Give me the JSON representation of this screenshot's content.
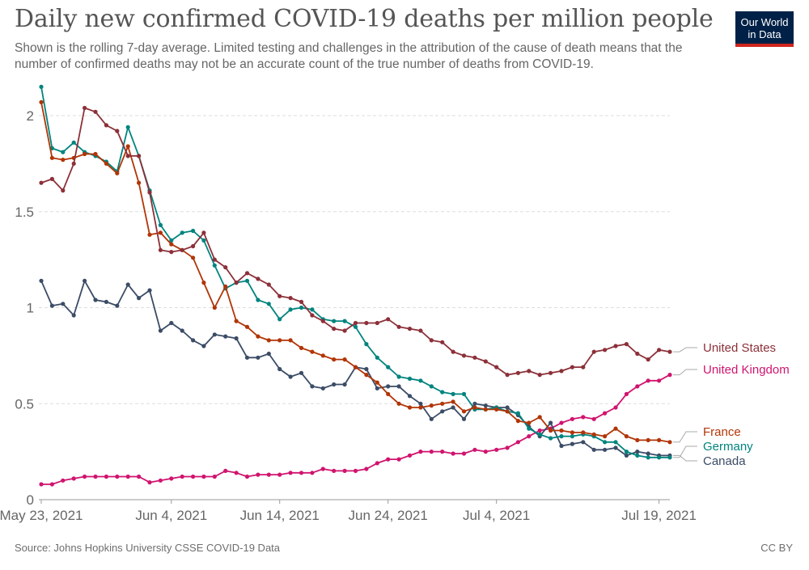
{
  "header": {
    "title": "Daily new confirmed COVID-19 deaths per million people",
    "subtitle": "Shown is the rolling 7-day average. Limited testing and challenges in the attribution of the cause of death means that the number of confirmed deaths may not be an accurate count of the true number of deaths from COVID-19."
  },
  "logo": {
    "line1": "Our World",
    "line2": "in Data"
  },
  "footer": {
    "source": "Source: Johns Hopkins University CSSE COVID-19 Data",
    "license": "CC BY"
  },
  "colors": {
    "United States": "#8c3039",
    "United Kingdom": "#d0146f",
    "France": "#b13507",
    "Germany": "#00847e",
    "Canada": "#3b4c66"
  },
  "chart_data": {
    "type": "line",
    "title": "Daily new confirmed COVID-19 deaths per million people",
    "xlabel": "",
    "ylabel": "",
    "x_start": "2021-05-23",
    "x_end": "2021-07-19",
    "x_step": "1 day",
    "ylim": [
      0,
      2.2
    ],
    "yticks": [
      0,
      0.5,
      1,
      1.5,
      2
    ],
    "ytick_labels": [
      "0",
      "0.5",
      "1",
      "1.5",
      "2"
    ],
    "xtick_labels": [
      {
        "day": 0,
        "label": "May 23, 2021"
      },
      {
        "day": 12,
        "label": "Jun 4, 2021"
      },
      {
        "day": 22,
        "label": "Jun 14, 2021"
      },
      {
        "day": 32,
        "label": "Jun 24, 2021"
      },
      {
        "day": 42,
        "label": "Jul 4, 2021"
      },
      {
        "day": 57,
        "label": "Jul 19, 2021"
      }
    ],
    "grid": true,
    "series": [
      {
        "name": "United States",
        "label": "United States",
        "values": [
          1.65,
          1.67,
          1.61,
          1.75,
          2.04,
          2.02,
          1.95,
          1.92,
          1.79,
          1.79,
          1.6,
          1.3,
          1.29,
          1.3,
          1.32,
          1.39,
          1.25,
          1.21,
          1.13,
          1.18,
          1.15,
          1.12,
          1.06,
          1.05,
          1.03,
          0.96,
          0.93,
          0.89,
          0.88,
          0.92,
          0.92,
          0.92,
          0.94,
          0.9,
          0.89,
          0.88,
          0.83,
          0.82,
          0.77,
          0.75,
          0.74,
          0.72,
          0.69,
          0.65,
          0.66,
          0.67,
          0.65,
          0.66,
          0.67,
          0.69,
          0.69,
          0.77,
          0.78,
          0.8,
          0.81,
          0.76,
          0.73,
          0.78,
          0.77
        ]
      },
      {
        "name": "United Kingdom",
        "label": "United Kingdom",
        "values": [
          0.08,
          0.08,
          0.1,
          0.11,
          0.12,
          0.12,
          0.12,
          0.12,
          0.12,
          0.12,
          0.09,
          0.1,
          0.11,
          0.12,
          0.12,
          0.12,
          0.12,
          0.15,
          0.14,
          0.12,
          0.13,
          0.13,
          0.13,
          0.14,
          0.14,
          0.14,
          0.16,
          0.15,
          0.15,
          0.15,
          0.16,
          0.19,
          0.21,
          0.21,
          0.23,
          0.25,
          0.25,
          0.25,
          0.24,
          0.24,
          0.26,
          0.25,
          0.26,
          0.27,
          0.3,
          0.33,
          0.36,
          0.37,
          0.4,
          0.42,
          0.43,
          0.42,
          0.45,
          0.48,
          0.55,
          0.59,
          0.62,
          0.62,
          0.65
        ]
      },
      {
        "name": "France",
        "label": "France",
        "values": [
          2.07,
          1.78,
          1.77,
          1.78,
          1.8,
          1.8,
          1.75,
          1.7,
          1.84,
          1.65,
          1.38,
          1.39,
          1.33,
          1.3,
          1.26,
          1.13,
          1.0,
          1.11,
          0.93,
          0.9,
          0.85,
          0.83,
          0.83,
          0.83,
          0.79,
          0.77,
          0.75,
          0.73,
          0.73,
          0.69,
          0.65,
          0.61,
          0.55,
          0.5,
          0.48,
          0.48,
          0.49,
          0.5,
          0.51,
          0.46,
          0.48,
          0.47,
          0.47,
          0.46,
          0.41,
          0.4,
          0.43,
          0.36,
          0.36,
          0.35,
          0.35,
          0.34,
          0.33,
          0.37,
          0.33,
          0.31,
          0.31,
          0.31,
          0.3
        ]
      },
      {
        "name": "Germany",
        "label": "Germany",
        "values": [
          2.15,
          1.83,
          1.81,
          1.86,
          1.81,
          1.79,
          1.76,
          1.71,
          1.94,
          1.79,
          1.61,
          1.43,
          1.35,
          1.39,
          1.4,
          1.35,
          1.22,
          1.1,
          1.13,
          1.14,
          1.04,
          1.02,
          0.94,
          0.99,
          1.0,
          0.99,
          0.94,
          0.93,
          0.93,
          0.9,
          0.81,
          0.74,
          0.69,
          0.64,
          0.63,
          0.62,
          0.59,
          0.56,
          0.55,
          0.55,
          0.47,
          0.47,
          0.48,
          0.46,
          0.45,
          0.37,
          0.34,
          0.32,
          0.33,
          0.33,
          0.34,
          0.33,
          0.3,
          0.3,
          0.25,
          0.23,
          0.22,
          0.22,
          0.22
        ]
      },
      {
        "name": "Canada",
        "label": "Canada",
        "values": [
          1.14,
          1.01,
          1.02,
          0.96,
          1.14,
          1.04,
          1.03,
          1.01,
          1.12,
          1.05,
          1.09,
          0.88,
          0.92,
          0.88,
          0.83,
          0.8,
          0.86,
          0.85,
          0.84,
          0.74,
          0.74,
          0.76,
          0.68,
          0.64,
          0.66,
          0.59,
          0.58,
          0.6,
          0.6,
          0.69,
          0.68,
          0.58,
          0.59,
          0.59,
          0.54,
          0.5,
          0.42,
          0.46,
          0.48,
          0.42,
          0.5,
          0.49,
          0.48,
          0.48,
          0.44,
          0.38,
          0.33,
          0.4,
          0.28,
          0.29,
          0.3,
          0.26,
          0.26,
          0.27,
          0.23,
          0.25,
          0.24,
          0.23,
          0.23
        ]
      }
    ]
  }
}
